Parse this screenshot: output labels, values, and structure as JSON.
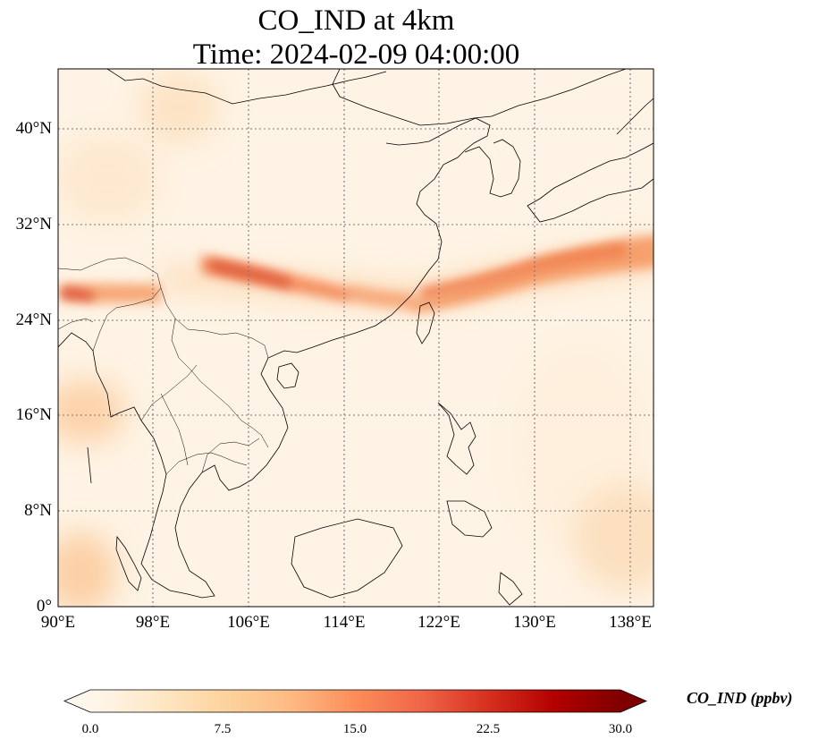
{
  "title": {
    "line1": "CO_IND at 4km",
    "line2": "Time: 2024-02-09 04:00:00"
  },
  "map": {
    "lon_range": [
      90,
      140
    ],
    "lat_range": [
      0,
      45
    ],
    "gridlines": "dotted",
    "lat_ticks": [
      "0°",
      "8°N",
      "16°N",
      "24°N",
      "32°N",
      "40°N"
    ],
    "lon_ticks": [
      "90°E",
      "98°E",
      "106°E",
      "114°E",
      "122°E",
      "130°E",
      "138°E"
    ],
    "colormap": "OrRd",
    "features": [
      "coastlines",
      "country borders"
    ]
  },
  "colorbar": {
    "label": "CO_IND (ppbv)",
    "ticks": [
      "0.0",
      "7.5",
      "15.0",
      "22.5",
      "30.0"
    ],
    "min": 0,
    "max": 30,
    "extend": "both",
    "colors": [
      "#fff7ec",
      "#fee8c8",
      "#fdd49e",
      "#fdbb84",
      "#fc8d59",
      "#ef6548",
      "#d7301f",
      "#b30000",
      "#7f0000"
    ]
  }
}
